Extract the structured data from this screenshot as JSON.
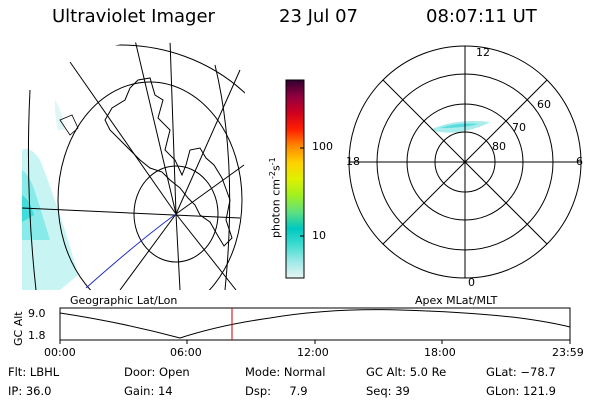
{
  "header": {
    "title": "Ultraviolet Imager",
    "date": "23 Jul 07",
    "time": "08:07:11 UT"
  },
  "left_panel": {
    "caption": "Geographic Lat/Lon"
  },
  "right_panel": {
    "caption": "Apex MLat/MLT",
    "mlt_labels": {
      "top": "12",
      "left": "18",
      "right": "6",
      "bottom": "0"
    },
    "lat_labels": [
      "60",
      "70",
      "80"
    ]
  },
  "colorbar": {
    "unit_text": "photon cm",
    "unit_exp1": "-2",
    "unit_mid": "s",
    "unit_exp2": "-1",
    "ticks": [
      "100",
      "10"
    ]
  },
  "altitude_plot": {
    "label": "GC Alt",
    "y_ticks": [
      "9.0",
      "1.8"
    ],
    "x_ticks": [
      "00:00",
      "06:00",
      "12:00",
      "18:00",
      "23:59"
    ],
    "marker_time": "08:07"
  },
  "info": {
    "flt_label": "Flt:",
    "flt_value": "LBHL",
    "ip_label": "IP:",
    "ip_value": "36.0",
    "door_label": "Door:",
    "door_value": "Open",
    "gain_label": "Gain:",
    "gain_value": "14",
    "mode_label": "Mode:",
    "mode_value": "Normal",
    "dsp_label": "Dsp:",
    "dsp_value": "7.9",
    "gcalt_label": "GC Alt:",
    "gcalt_value": "5.0 Re",
    "seq_label": "Seq:",
    "seq_value": "39",
    "glat_label": "GLat:",
    "glat_value": "−78.7",
    "glon_label": "GLon:",
    "glon_value": "121.9"
  },
  "colors": {
    "colorbar_stops": [
      "#e8f4f4",
      "#9ee8e8",
      "#40dcd0",
      "#00c8c0",
      "#60e080",
      "#a0f020",
      "#e0f000",
      "#ffd000",
      "#ff8800",
      "#ff2000",
      "#d00020",
      "#900040",
      "#300030"
    ],
    "aurora": "#40e0e0",
    "trace": "#2030c0",
    "marker": "#cc0000"
  }
}
